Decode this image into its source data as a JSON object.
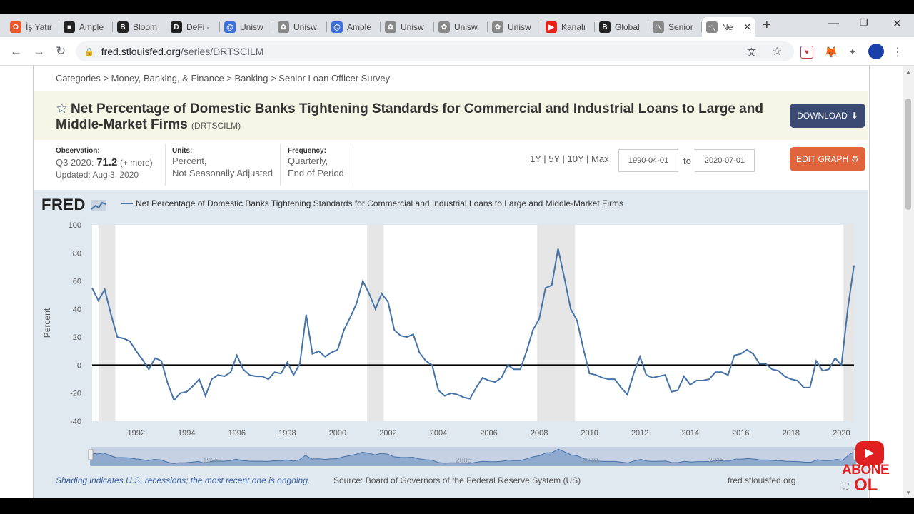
{
  "browser": {
    "tabs": [
      {
        "label": "İş Yatır",
        "fav": "o-icon",
        "color": "#e8562a"
      },
      {
        "label": "Ample",
        "fav": "cube-icon",
        "color": "#222"
      },
      {
        "label": "Bloom",
        "fav": "b-icon",
        "color": "#222"
      },
      {
        "label": "DeFi -",
        "fav": "d-icon",
        "color": "#222"
      },
      {
        "label": "Unisw",
        "fav": "at-icon",
        "color": "#3c6fd8"
      },
      {
        "label": "Unisw",
        "fav": "unicorn-icon",
        "color": "#888"
      },
      {
        "label": "Ample",
        "fav": "at-icon",
        "color": "#3c6fd8"
      },
      {
        "label": "Unisw",
        "fav": "unicorn-icon",
        "color": "#888"
      },
      {
        "label": "Unisw",
        "fav": "unicorn-icon",
        "color": "#888"
      },
      {
        "label": "Unisw",
        "fav": "unicorn-icon",
        "color": "#888"
      },
      {
        "label": "Kanalı",
        "fav": "youtube-icon",
        "color": "#e62117"
      },
      {
        "label": "Global",
        "fav": "b-icon",
        "color": "#222"
      },
      {
        "label": "Senior",
        "fav": "fred-icon",
        "color": "#888"
      },
      {
        "label": "Ne",
        "fav": "fred-icon",
        "color": "#888"
      }
    ],
    "url_host": "fred.stlouisfed.org",
    "url_path": "/series/DRTSCILM"
  },
  "page": {
    "breadcrumb": "Categories > Money, Banking, & Finance > Banking > Senior Loan Officer Survey",
    "title": "Net Percentage of Domestic Banks Tightening Standards for Commercial and Industrial Loans to Large and Middle-Market Firms",
    "series_id": "(DRTSCILM)",
    "download_label": "DOWNLOAD",
    "observation_label": "Observation:",
    "observation_period": "Q3 2020:",
    "observation_value": "71.2",
    "observation_more": "(+ more)",
    "updated": "Updated: Aug 3, 2020",
    "units_label": "Units:",
    "units_line1": "Percent,",
    "units_line2": "Not Seasonally Adjusted",
    "frequency_label": "Frequency:",
    "frequency_line1": "Quarterly,",
    "frequency_line2": "End of Period",
    "ranges": "1Y | 5Y | 10Y | Max",
    "date_from": "1990-04-01",
    "to_label": "to",
    "date_to": "2020-07-01",
    "edit_label": "EDIT GRAPH",
    "fred_logo": "FRED",
    "legend_label": "Net Percentage of Domestic Banks Tightening Standards for Commercial and Industrial Loans to Large and Middle-Market Firms",
    "shading_note": "Shading indicates U.S. recessions; the most recent one is ongoing.",
    "source": "Source: Board of Governors of the Federal Reserve System (US)",
    "site": "fred.stlouisfed.org",
    "abone_line1": "ABONE",
    "abone_line2": "OL"
  },
  "colors": {
    "series": "#4572a7",
    "chart_bg": "#e1e9f0",
    "download": "#3a4a72",
    "edit": "#e0643c"
  },
  "chart_data": {
    "type": "line",
    "ylabel": "Percent",
    "ylim": [
      -40,
      100
    ],
    "xlim": [
      1990.25,
      2020.5
    ],
    "yticks": [
      -40,
      -20,
      0,
      20,
      40,
      60,
      80,
      100
    ],
    "xticks": [
      1992,
      1994,
      1996,
      1998,
      2000,
      2002,
      2004,
      2006,
      2008,
      2010,
      2012,
      2014,
      2016,
      2018,
      2020
    ],
    "navigator_labels": [
      "1995",
      "2005",
      "2010",
      "2015"
    ],
    "recessions": [
      [
        1990.5,
        1991.17
      ],
      [
        2001.17,
        2001.83
      ],
      [
        2007.92,
        2009.42
      ],
      [
        2020.08,
        2020.5
      ]
    ],
    "series": [
      {
        "name": "Net Percentage of Domestic Banks Tightening Standards for Commercial and Industrial Loans to Large and Middle-Market Firms",
        "x": [
          1990.25,
          1990.5,
          1990.75,
          1991,
          1991.25,
          1991.5,
          1991.75,
          1992,
          1992.25,
          1992.5,
          1992.75,
          1993,
          1993.25,
          1993.5,
          1993.75,
          1994,
          1994.25,
          1994.5,
          1994.75,
          1995,
          1995.25,
          1995.5,
          1995.75,
          1996,
          1996.25,
          1996.5,
          1996.75,
          1997,
          1997.25,
          1997.5,
          1997.75,
          1998,
          1998.25,
          1998.5,
          1998.75,
          1999,
          1999.25,
          1999.5,
          1999.75,
          2000,
          2000.25,
          2000.5,
          2000.75,
          2001,
          2001.25,
          2001.5,
          2001.75,
          2002,
          2002.25,
          2002.5,
          2002.75,
          2003,
          2003.25,
          2003.5,
          2003.75,
          2004,
          2004.25,
          2004.5,
          2004.75,
          2005,
          2005.25,
          2005.5,
          2005.75,
          2006,
          2006.25,
          2006.5,
          2006.75,
          2007,
          2007.25,
          2007.5,
          2007.75,
          2008,
          2008.25,
          2008.5,
          2008.75,
          2009,
          2009.25,
          2009.5,
          2009.75,
          2010,
          2010.25,
          2010.5,
          2010.75,
          2011,
          2011.25,
          2011.5,
          2011.75,
          2012,
          2012.25,
          2012.5,
          2012.75,
          2013,
          2013.25,
          2013.5,
          2013.75,
          2014,
          2014.25,
          2014.5,
          2014.75,
          2015,
          2015.25,
          2015.5,
          2015.75,
          2016,
          2016.25,
          2016.5,
          2016.75,
          2017,
          2017.25,
          2017.5,
          2017.75,
          2018,
          2018.25,
          2018.5,
          2018.75,
          2019,
          2019.25,
          2019.5,
          2019.75,
          2020,
          2020.25,
          2020.5
        ],
        "values": [
          55,
          46,
          54,
          36,
          20,
          19,
          17,
          10,
          4,
          -3,
          5,
          3,
          -13,
          -25,
          -20,
          -19,
          -15,
          -10,
          -22,
          -10,
          -7,
          -8,
          -5,
          7,
          -3,
          -7,
          -8,
          -8,
          -10,
          -5,
          -6,
          2,
          -7,
          1,
          36,
          8,
          10,
          6,
          9,
          11,
          25,
          34,
          44,
          60,
          51,
          40,
          51,
          45,
          25,
          21,
          20,
          22,
          9,
          3,
          0,
          -18,
          -22,
          -20,
          -21,
          -23,
          -24,
          -16,
          -9,
          -11,
          -12,
          -9,
          0,
          -3,
          -3,
          10,
          25,
          33,
          55,
          57,
          83,
          62,
          40,
          32,
          12,
          -6,
          -7,
          -9,
          -10,
          -10,
          -16,
          -21,
          -6,
          6,
          -7,
          -9,
          -8,
          -7,
          -19,
          -18,
          -8,
          -14,
          -11,
          -11,
          -10,
          -5,
          -5,
          -7,
          7,
          8,
          11,
          8,
          1,
          1,
          -3,
          -4,
          -8,
          -10,
          -11,
          -16,
          -16,
          3,
          -4,
          -3,
          5,
          0,
          40,
          71.2
        ]
      }
    ]
  }
}
